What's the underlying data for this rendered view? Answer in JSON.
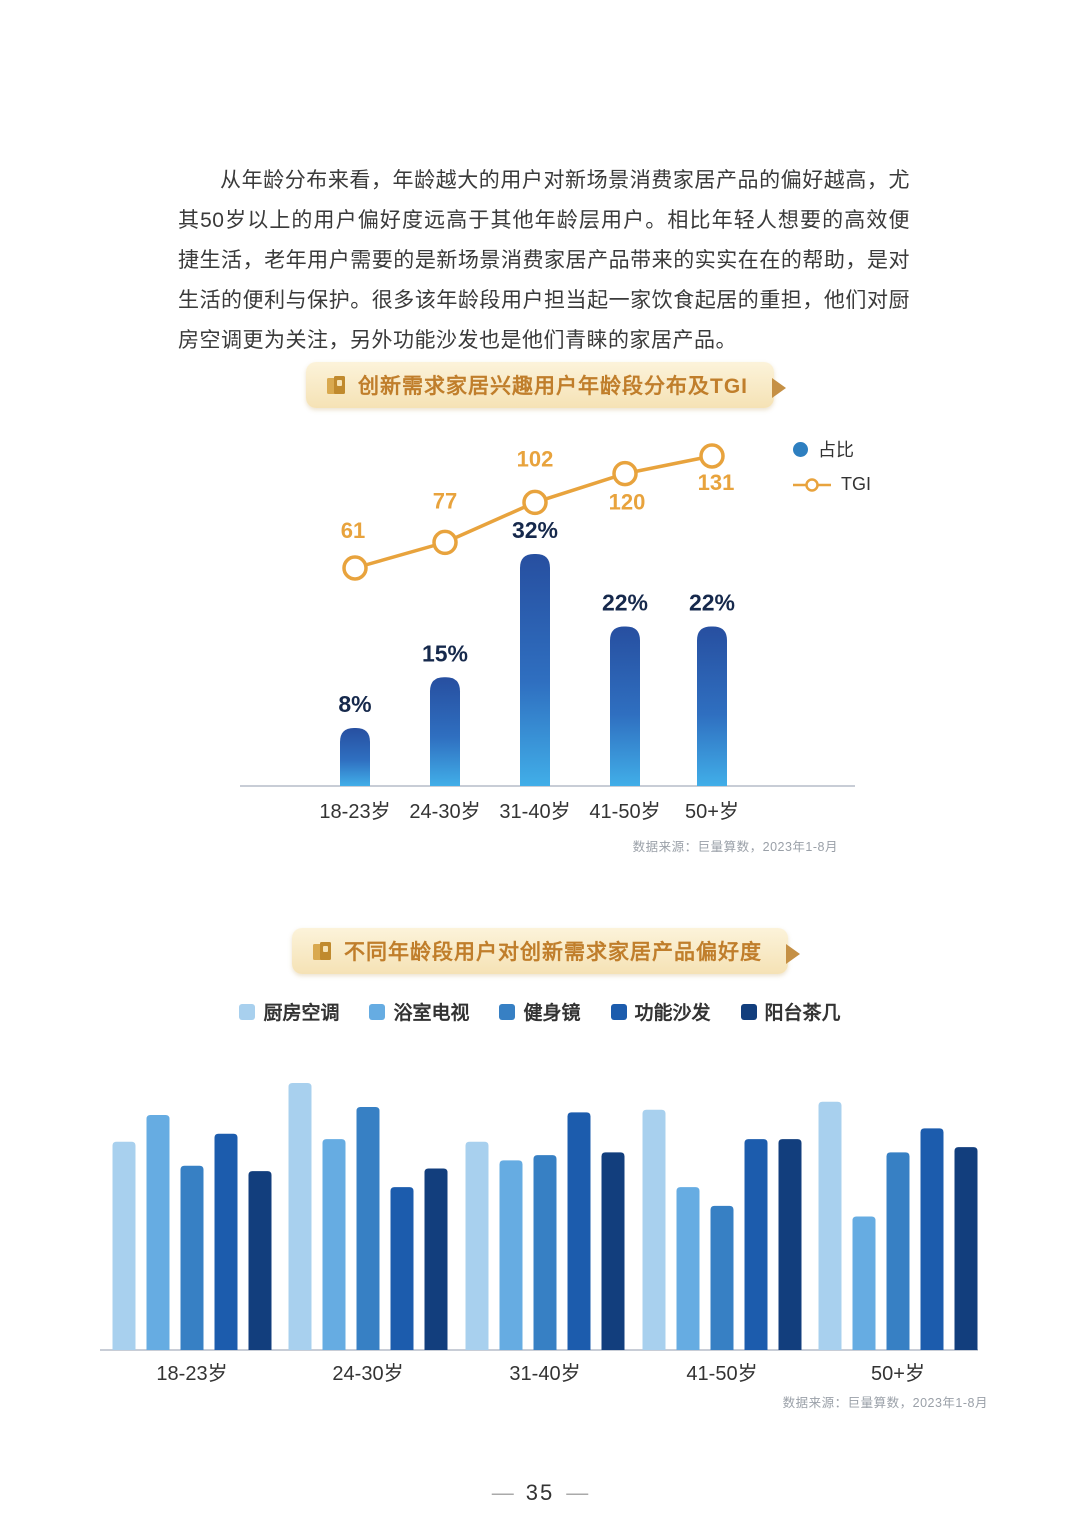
{
  "intro_paragraph": "从年龄分布来看，年龄越大的用户对新场景消费家居产品的偏好越高，尤其50岁以上的用户偏好度远高于其他年龄层用户。相比年轻人想要的高效便捷生活，老年用户需要的是新场景消费家居产品带来的实实在在的帮助，是对生活的便利与保护。很多该年龄段用户担当起一家饮食起居的重担，他们对厨房空调更为关注，另外功能沙发也是他们青睐的家居产品。",
  "chart_data": [
    {
      "type": "combo-bar-line",
      "title": "创新需求家居兴趣用户年龄段分布及TGI",
      "categories": [
        "18-23岁",
        "24-30岁",
        "31-40岁",
        "41-50岁",
        "50+岁"
      ],
      "series": [
        {
          "name": "占比",
          "type": "bar",
          "unit": "%",
          "values": [
            8,
            15,
            32,
            22,
            22
          ],
          "labels": [
            "8%",
            "15%",
            "32%",
            "22%",
            "22%"
          ]
        },
        {
          "name": "TGI",
          "type": "line",
          "values": [
            61,
            77,
            102,
            120,
            131
          ]
        }
      ],
      "legend": [
        "占比",
        "TGI"
      ],
      "legend_position": "top-right",
      "grid": false,
      "colors": {
        "bar_top": "#274FA0",
        "bar_mid": "#2F6FC0",
        "bar_bottom": "#41AEE8",
        "line": "#E8A33D",
        "bar_label": "#16294C"
      },
      "source": "数据来源：巨量算数，2023年1-8月"
    },
    {
      "type": "bar",
      "title": "不同年龄段用户对创新需求家居产品偏好度",
      "categories": [
        "18-23岁",
        "24-30岁",
        "31-40岁",
        "41-50岁",
        "50+岁"
      ],
      "series": [
        {
          "name": "厨房空调",
          "color": "#A8D0EE",
          "values": [
            78,
            100,
            78,
            90,
            93
          ]
        },
        {
          "name": "浴室电视",
          "color": "#66ACE2",
          "values": [
            88,
            79,
            71,
            61,
            50
          ]
        },
        {
          "name": "健身镜",
          "color": "#3780C4",
          "values": [
            69,
            91,
            73,
            54,
            74
          ]
        },
        {
          "name": "功能沙发",
          "color": "#1C5CAD",
          "values": [
            81,
            61,
            89,
            79,
            83
          ]
        },
        {
          "name": "阳台茶几",
          "color": "#123E7D",
          "values": [
            67,
            68,
            74,
            79,
            76
          ]
        }
      ],
      "ylim": [
        0,
        100
      ],
      "grid": false,
      "legend_position": "top-center",
      "source": "数据来源：巨量算数，2023年1-8月"
    }
  ],
  "footer": {
    "left_dash": "—",
    "number": "35",
    "right_dash": "—"
  }
}
